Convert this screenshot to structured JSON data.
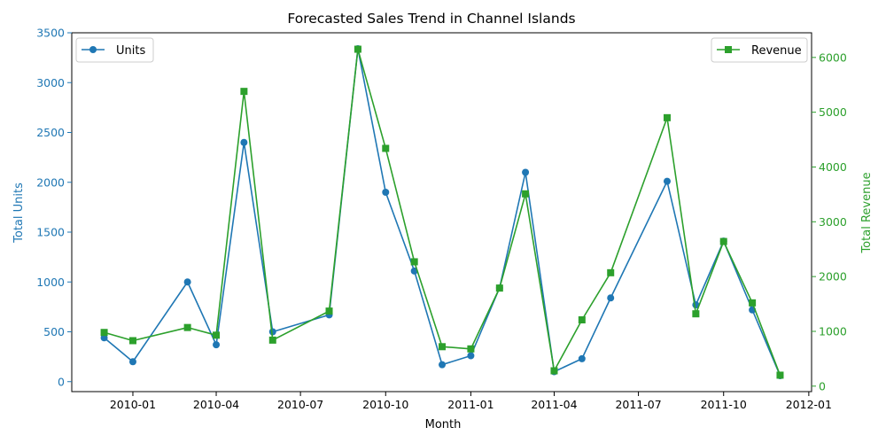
{
  "chart_data": {
    "type": "line",
    "title": "Forecasted Sales Trend in Channel Islands",
    "xlabel": "Month",
    "ylabel_left": "Total Units",
    "ylabel_right": "Total Revenue",
    "x_range": [
      "2009-10-27",
      "2012-01-04"
    ],
    "x_ticks": [
      {
        "date": "2010-01-01",
        "label": "2010-01"
      },
      {
        "date": "2010-04-01",
        "label": "2010-04"
      },
      {
        "date": "2010-07-01",
        "label": "2010-07"
      },
      {
        "date": "2010-10-01",
        "label": "2010-10"
      },
      {
        "date": "2011-01-01",
        "label": "2011-01"
      },
      {
        "date": "2011-04-01",
        "label": "2011-04"
      },
      {
        "date": "2011-07-01",
        "label": "2011-07"
      },
      {
        "date": "2011-10-01",
        "label": "2011-10"
      },
      {
        "date": "2012-01-01",
        "label": "2012-01"
      }
    ],
    "ylim_left": [
      -100,
      3500
    ],
    "yticks_left": [
      0,
      500,
      1000,
      1500,
      2000,
      2500,
      3000,
      3500
    ],
    "ylim_right": [
      -100,
      6450
    ],
    "yticks_right": [
      0,
      1000,
      2000,
      3000,
      4000,
      5000,
      6000
    ],
    "grid": false,
    "colors": {
      "units": "#1f77b4",
      "revenue": "#2ca02c"
    },
    "series": [
      {
        "name": "Units",
        "axis": "left",
        "marker": "circle",
        "legend_position": "upper-left",
        "points": [
          {
            "x": "2009-12-01",
            "y": 440
          },
          {
            "x": "2010-01-01",
            "y": 200
          },
          {
            "x": "2010-03-01",
            "y": 1000
          },
          {
            "x": "2010-04-01",
            "y": 370
          },
          {
            "x": "2010-05-01",
            "y": 2400
          },
          {
            "x": "2010-06-01",
            "y": 500
          },
          {
            "x": "2010-08-01",
            "y": 670
          },
          {
            "x": "2010-09-01",
            "y": 3340
          },
          {
            "x": "2010-10-01",
            "y": 1900
          },
          {
            "x": "2010-11-01",
            "y": 1110
          },
          {
            "x": "2010-12-01",
            "y": 170
          },
          {
            "x": "2011-01-01",
            "y": 260
          },
          {
            "x": "2011-02-01",
            "y": 940
          },
          {
            "x": "2011-03-01",
            "y": 2100
          },
          {
            "x": "2011-04-01",
            "y": 100
          },
          {
            "x": "2011-05-01",
            "y": 230
          },
          {
            "x": "2011-06-01",
            "y": 840
          },
          {
            "x": "2011-08-01",
            "y": 2010
          },
          {
            "x": "2011-09-01",
            "y": 770
          },
          {
            "x": "2011-10-01",
            "y": 1410
          },
          {
            "x": "2011-11-01",
            "y": 720
          },
          {
            "x": "2011-12-01",
            "y": 60
          }
        ]
      },
      {
        "name": "Revenue",
        "axis": "right",
        "marker": "square",
        "legend_position": "upper-right",
        "points": [
          {
            "x": "2009-12-01",
            "y": 980
          },
          {
            "x": "2010-01-01",
            "y": 830
          },
          {
            "x": "2010-03-01",
            "y": 1070
          },
          {
            "x": "2010-04-01",
            "y": 930
          },
          {
            "x": "2010-05-01",
            "y": 5380
          },
          {
            "x": "2010-06-01",
            "y": 840
          },
          {
            "x": "2010-08-01",
            "y": 1370
          },
          {
            "x": "2010-09-01",
            "y": 6150
          },
          {
            "x": "2010-10-01",
            "y": 4340
          },
          {
            "x": "2010-11-01",
            "y": 2270
          },
          {
            "x": "2010-12-01",
            "y": 720
          },
          {
            "x": "2011-01-01",
            "y": 680
          },
          {
            "x": "2011-02-01",
            "y": 1790
          },
          {
            "x": "2011-03-01",
            "y": 3510
          },
          {
            "x": "2011-04-01",
            "y": 280
          },
          {
            "x": "2011-05-01",
            "y": 1210
          },
          {
            "x": "2011-06-01",
            "y": 2070
          },
          {
            "x": "2011-08-01",
            "y": 4900
          },
          {
            "x": "2011-09-01",
            "y": 1320
          },
          {
            "x": "2011-10-01",
            "y": 2640
          },
          {
            "x": "2011-11-01",
            "y": 1520
          },
          {
            "x": "2011-12-01",
            "y": 200
          }
        ]
      }
    ]
  }
}
